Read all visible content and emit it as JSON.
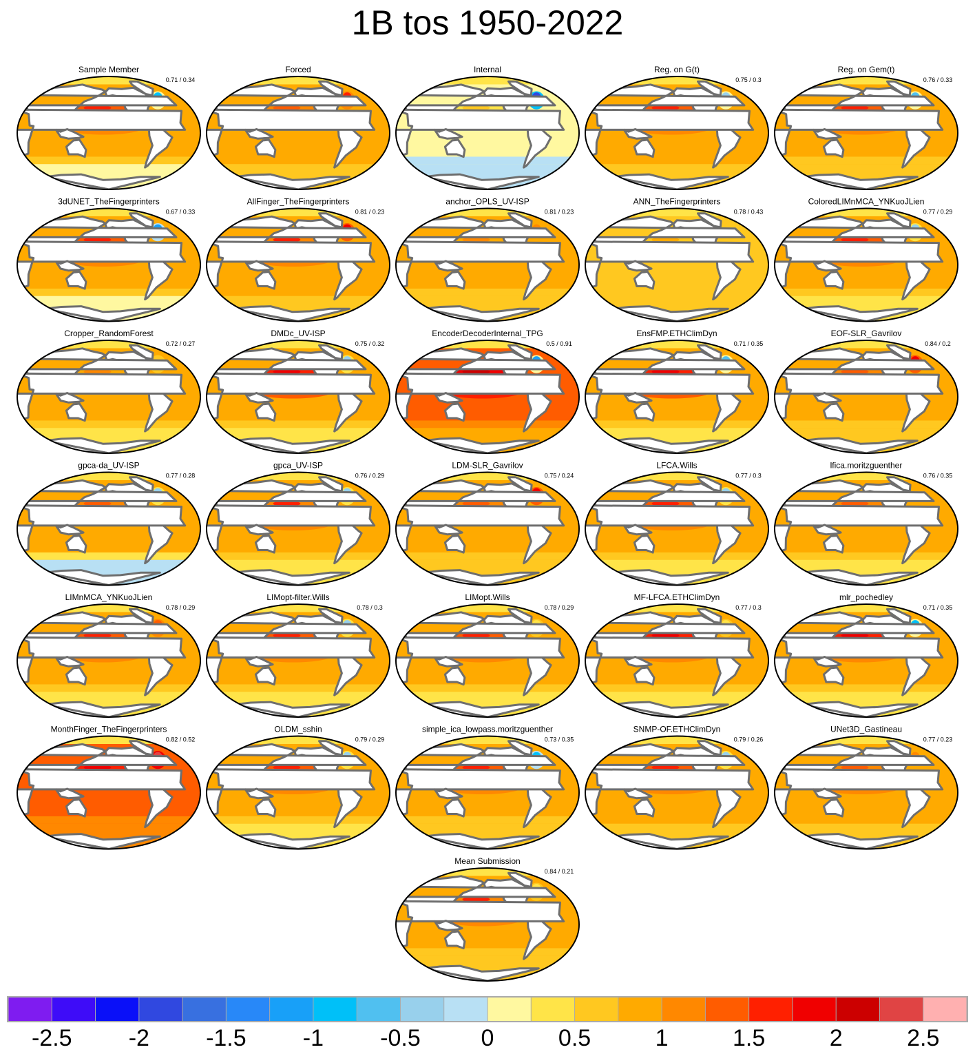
{
  "title": "1B tos 1950-2022",
  "colorbar": {
    "boundaries_start": -2.75,
    "step": 0.25,
    "colors": [
      "#7f1cf0",
      "#3e0cf8",
      "#0a10f8",
      "#3048e0",
      "#3870e0",
      "#2888f8",
      "#18a0f8",
      "#00c0f8",
      "#50c0f0",
      "#98d0ec",
      "#b8e0f4",
      "#fff8a0",
      "#ffe448",
      "#ffc820",
      "#ffaa00",
      "#ff8800",
      "#ff5c00",
      "#ff2000",
      "#f00000",
      "#cc0000",
      "#e04444",
      "#ffb0b0"
    ],
    "tick_labels": [
      "-2.5",
      "-2",
      "-1.5",
      "-1",
      "-0.5",
      "0",
      "0.5",
      "1",
      "1.5",
      "2",
      "2.5"
    ],
    "tick_values": [
      -2.5,
      -2,
      -1.5,
      -1,
      -0.5,
      0,
      0.5,
      1,
      1.5,
      2,
      2.5
    ]
  },
  "land_color": "#ffffff",
  "coast_color": "#6e6e6e",
  "panels": [
    {
      "title": "Sample Member",
      "score": "0.71 / 0.34",
      "field": {
        "mean": 0.9,
        "pacific": 1.4,
        "southern": 0.2,
        "north_atlantic": -0.8
      }
    },
    {
      "title": "Forced",
      "score": "",
      "field": {
        "mean": 0.95,
        "pacific": 1.0,
        "southern": 0.6,
        "north_atlantic": 1.5
      }
    },
    {
      "title": "Internal",
      "score": "",
      "field": {
        "mean": 0.1,
        "pacific": 0.3,
        "southern": -0.2,
        "north_atlantic": -2.0
      }
    },
    {
      "title": "Reg. on G(t)",
      "score": "0.75 / 0.3",
      "field": {
        "mean": 0.95,
        "pacific": 1.4,
        "southern": 0.7,
        "north_atlantic": -0.5
      }
    },
    {
      "title": "Reg. on Gem(t)",
      "score": "0.76 / 0.33",
      "field": {
        "mean": 0.95,
        "pacific": 1.4,
        "southern": 0.5,
        "north_atlantic": -0.6
      }
    },
    {
      "title": "3dUNET_TheFingerprinters",
      "score": "0.67 / 0.33",
      "field": {
        "mean": 0.9,
        "pacific": 1.3,
        "southern": 0.2,
        "north_atlantic": -1.2
      }
    },
    {
      "title": "AllFinger_TheFingerprinters",
      "score": "0.81 / 0.23",
      "field": {
        "mean": 0.9,
        "pacific": 1.2,
        "southern": 0.6,
        "north_atlantic": 1.9
      }
    },
    {
      "title": "anchor_OPLS_UV-ISP",
      "score": "0.81 / 0.23",
      "field": {
        "mean": 0.85,
        "pacific": 0.9,
        "southern": 0.5,
        "north_atlantic": 1.0
      }
    },
    {
      "title": "ANN_TheFingerprinters",
      "score": "0.78 / 0.43",
      "field": {
        "mean": 0.6,
        "pacific": 0.6,
        "southern": 0.5,
        "north_atlantic": 0.6
      }
    },
    {
      "title": "ColoredLIMnMCA_YNKuoJLien",
      "score": "0.77 / 0.29",
      "field": {
        "mean": 0.95,
        "pacific": 1.4,
        "southern": 0.3,
        "north_atlantic": -0.3
      }
    },
    {
      "title": "Cropper_RandomForest",
      "score": "0.72 / 0.27",
      "field": {
        "mean": 0.85,
        "pacific": 0.9,
        "southern": 0.4,
        "north_atlantic": 0.6
      }
    },
    {
      "title": "DMDc_UV-ISP",
      "score": "0.75 / 0.32",
      "field": {
        "mean": 0.95,
        "pacific": 1.6,
        "southern": 0.3,
        "north_atlantic": -0.3
      }
    },
    {
      "title": "EncoderDecoderInternal_TPG",
      "score": "0.5 / 0.91",
      "field": {
        "mean": 1.3,
        "pacific": 1.9,
        "southern": 0.8,
        "north_atlantic": -1.2
      }
    },
    {
      "title": "EnsFMP.ETHClimDyn",
      "score": "0.71 / 0.35",
      "field": {
        "mean": 0.95,
        "pacific": 1.6,
        "southern": 0.4,
        "north_atlantic": -0.7
      }
    },
    {
      "title": "EOF-SLR_Gavrilov",
      "score": "0.84 / 0.2",
      "field": {
        "mean": 0.85,
        "pacific": 1.0,
        "southern": 0.5,
        "north_atlantic": 1.9
      }
    },
    {
      "title": "gpca-da_UV-ISP",
      "score": "0.77 / 0.28",
      "field": {
        "mean": 0.8,
        "pacific": 1.1,
        "southern": -0.1,
        "north_atlantic": -0.3
      }
    },
    {
      "title": "gpca_UV-ISP",
      "score": "0.76 / 0.29",
      "field": {
        "mean": 0.85,
        "pacific": 1.2,
        "southern": 0.3,
        "north_atlantic": -0.3
      }
    },
    {
      "title": "LDM-SLR_Gavrilov",
      "score": "0.75 / 0.24",
      "field": {
        "mean": 0.9,
        "pacific": 1.0,
        "southern": 0.5,
        "north_atlantic": 1.8
      }
    },
    {
      "title": "LFCA.Wills",
      "score": "0.77 / 0.3",
      "field": {
        "mean": 0.9,
        "pacific": 1.3,
        "southern": 0.3,
        "north_atlantic": -0.3
      }
    },
    {
      "title": "lfica.moritzguenther",
      "score": "0.76 / 0.35",
      "field": {
        "mean": 0.85,
        "pacific": 1.0,
        "southern": 0.3,
        "north_atlantic": 0.9
      }
    },
    {
      "title": "LIMnMCA_YNKuoJLien",
      "score": "0.78 / 0.29",
      "field": {
        "mean": 0.95,
        "pacific": 1.4,
        "southern": 0.3,
        "north_atlantic": 1.3
      }
    },
    {
      "title": "LIMopt-filter.Wills",
      "score": "0.78 / 0.3",
      "field": {
        "mean": 0.95,
        "pacific": 1.4,
        "southern": 0.3,
        "north_atlantic": -0.3
      }
    },
    {
      "title": "LIMopt.Wills",
      "score": "0.78 / 0.29",
      "field": {
        "mean": 0.95,
        "pacific": 1.4,
        "southern": 0.4,
        "north_atlantic": 0.4
      }
    },
    {
      "title": "MF-LFCA.ETHClimDyn",
      "score": "0.77 / 0.3",
      "field": {
        "mean": 0.95,
        "pacific": 1.5,
        "southern": 0.4,
        "north_atlantic": 0.4
      }
    },
    {
      "title": "mlr_pochedley",
      "score": "0.71 / 0.35",
      "field": {
        "mean": 0.95,
        "pacific": 1.5,
        "southern": 0.4,
        "north_atlantic": -0.8
      }
    },
    {
      "title": "MonthFinger_TheFingerprinters",
      "score": "0.82 / 0.52",
      "field": {
        "mean": 1.3,
        "pacific": 1.5,
        "southern": 1.1,
        "north_atlantic": 2.4
      }
    },
    {
      "title": "OLDM_sshin",
      "score": "0.79 / 0.29",
      "field": {
        "mean": 0.9,
        "pacific": 1.3,
        "southern": 0.3,
        "north_atlantic": -0.3
      }
    },
    {
      "title": "simple_ica_lowpass.moritzguenther",
      "score": "0.73 / 0.35",
      "field": {
        "mean": 0.95,
        "pacific": 1.4,
        "southern": 0.5,
        "north_atlantic": -1.0
      }
    },
    {
      "title": "SNMP-OF.ETHClimDyn",
      "score": "0.79 / 0.26",
      "field": {
        "mean": 0.95,
        "pacific": 1.3,
        "southern": 0.6,
        "north_atlantic": -0.3
      }
    },
    {
      "title": "UNet3D_Gastineau",
      "score": "0.77 / 0.23",
      "field": {
        "mean": 0.9,
        "pacific": 1.1,
        "southern": 0.6,
        "north_atlantic": 1.0
      }
    },
    {
      "title": "Mean Submission",
      "score": "0.84 / 0.21",
      "field": {
        "mean": 0.9,
        "pacific": 1.2,
        "southern": 0.5,
        "north_atlantic": 0.3
      }
    }
  ]
}
